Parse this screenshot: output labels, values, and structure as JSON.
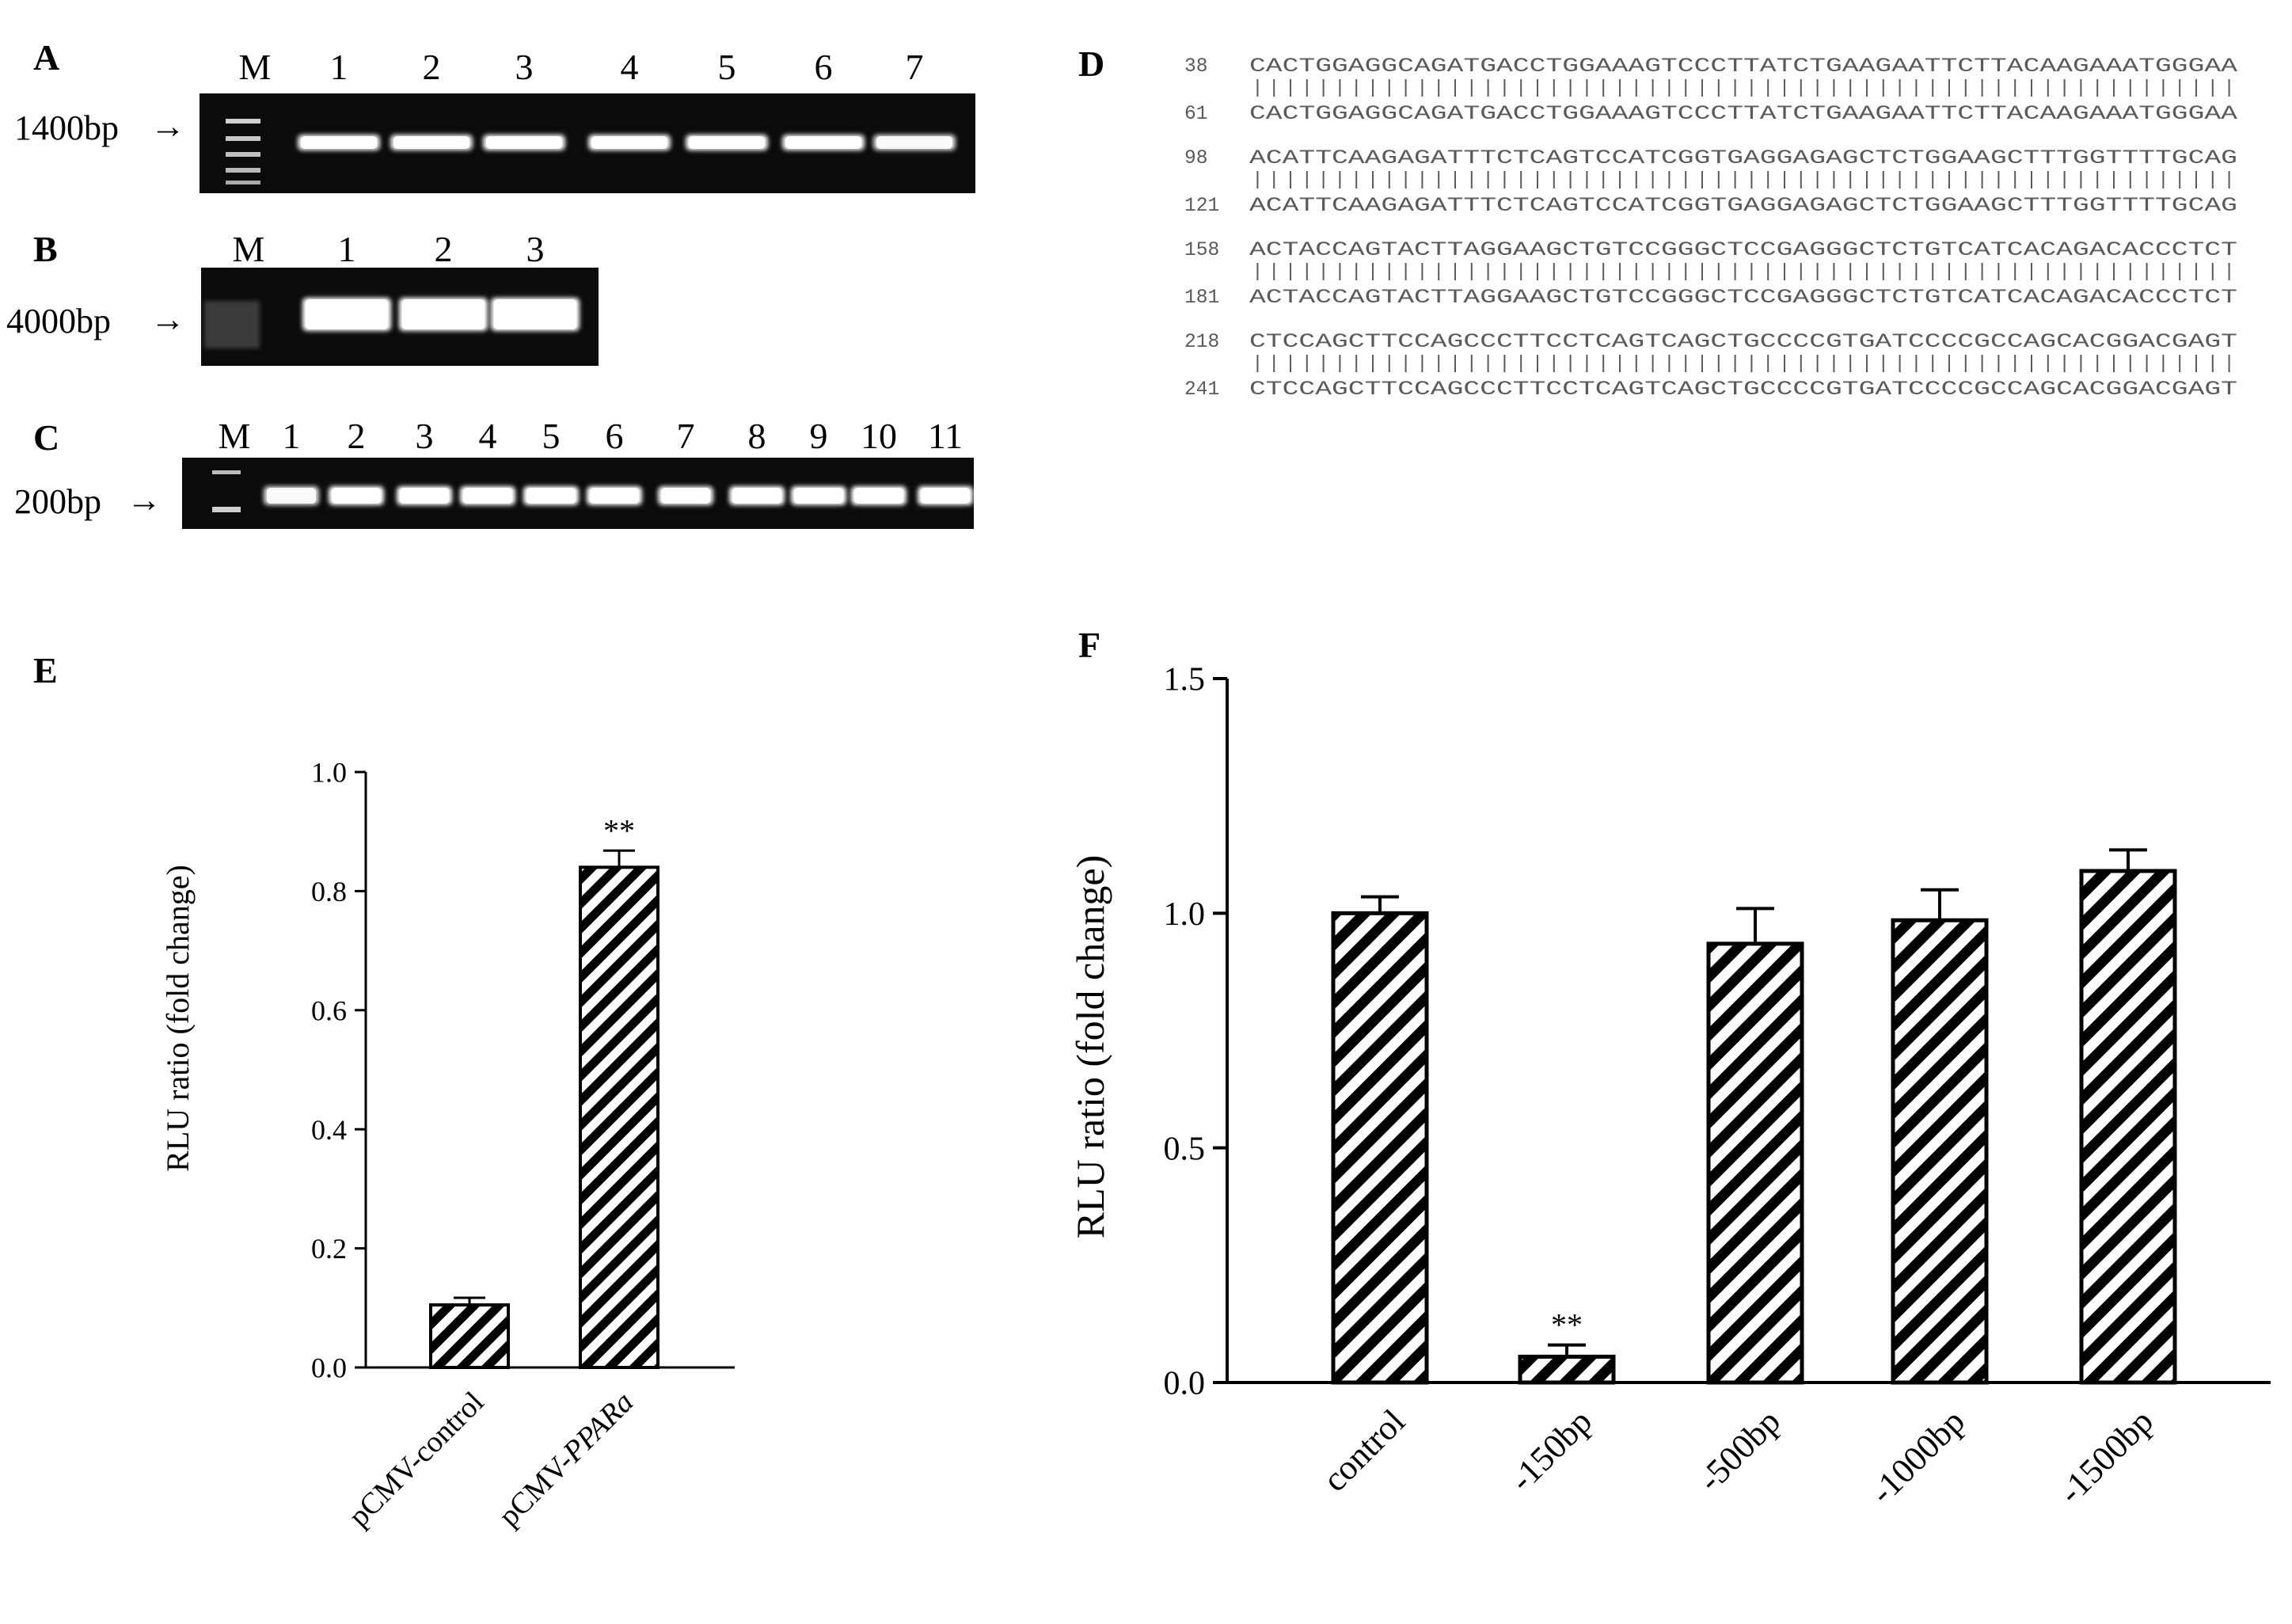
{
  "panels": {
    "A": {
      "label": "A",
      "marker": "M",
      "lanes": [
        "1",
        "2",
        "3",
        "4",
        "5",
        "6",
        "7"
      ],
      "size_label": "1400bp"
    },
    "B": {
      "label": "B",
      "marker": "M",
      "lanes": [
        "1",
        "2",
        "3"
      ],
      "size_label": "4000bp"
    },
    "C": {
      "label": "C",
      "marker": "M",
      "lanes": [
        "1",
        "2",
        "3",
        "4",
        "5",
        "6",
        "7",
        "8",
        "9",
        "10",
        "11"
      ],
      "size_label": "200bp"
    },
    "D": {
      "label": "D",
      "alignment": [
        {
          "q_start": "38",
          "q_seq": "CACTGGAGGCAGATGACCTGGAAAGTCCCTTATCTGAAGAATTCTTACAAGAAATGGGAA",
          "s_start": "61",
          "s_seq": "CACTGGAGGCAGATGACCTGGAAAGTCCCTTATCTGAAGAATTCTTACAAGAAATGGGAA"
        },
        {
          "q_start": "98",
          "q_seq": "ACATTCAAGAGATTTCTCAGTCCATCGGTGAGGAGAGCTCTGGAAGCTTTGGTTTTGCAG",
          "s_start": "121",
          "s_seq": "ACATTCAAGAGATTTCTCAGTCCATCGGTGAGGAGAGCTCTGGAAGCTTTGGTTTTGCAG"
        },
        {
          "q_start": "158",
          "q_seq": "ACTACCAGTACTTAGGAAGCTGTCCGGGCTCCGAGGGCTCTGTCATCACAGACACCCTCT",
          "s_start": "181",
          "s_seq": "ACTACCAGTACTTAGGAAGCTGTCCGGGCTCCGAGGGCTCTGTCATCACAGACACCCTCT"
        },
        {
          "q_start": "218",
          "q_seq": "CTCCAGCTTCCAGCCCTTCCTCAGTCAGCTGCCCCGTGATCCCCGCCAGCACGGACGAGT",
          "s_start": "241",
          "s_seq": "CTCCAGCTTCCAGCCCTTCCTCAGTCAGCTGCCCCGTGATCCCCGCCAGCACGGACGAGT"
        }
      ]
    }
  },
  "chart_data": [
    {
      "panel": "E",
      "type": "bar",
      "categories": [
        "pCMV-control",
        "pCMV-PPARa"
      ],
      "category_parts": [
        [
          {
            "t": "pCMV-control",
            "i": false
          }
        ],
        [
          {
            "t": "pCMV-",
            "i": false
          },
          {
            "t": "PPARa",
            "i": true
          }
        ]
      ],
      "values": [
        0.105,
        0.84
      ],
      "errors": [
        0.012,
        0.028
      ],
      "annotations": [
        "",
        "**"
      ],
      "ylabel": "RLU ratio  (fold change)",
      "ylim": [
        0,
        1.0
      ],
      "yticks": [
        "0.0",
        "0.2",
        "0.4",
        "0.6",
        "0.8",
        "1.0"
      ],
      "bar_fill": "diagonal-hatch",
      "grid": false
    },
    {
      "panel": "F",
      "type": "bar",
      "categories": [
        "control",
        "-150bp",
        "-500bp",
        "-1000bp",
        "-1500bp"
      ],
      "values": [
        1.0,
        0.055,
        0.935,
        0.985,
        1.09
      ],
      "errors": [
        0.035,
        0.025,
        0.075,
        0.065,
        0.045
      ],
      "annotations": [
        "",
        "**",
        "",
        "",
        ""
      ],
      "ylabel": "RLU ratio (fold change)",
      "ylim": [
        0,
        1.5
      ],
      "yticks": [
        "0.0",
        "0.5",
        "1.0",
        "1.5"
      ],
      "bar_fill": "diagonal-hatch",
      "grid": false
    }
  ],
  "colors": {
    "gel_background": "#0b0b0b",
    "band": "#ffffff",
    "ink": "#000000",
    "sequence_text": "#5a5a5a"
  }
}
